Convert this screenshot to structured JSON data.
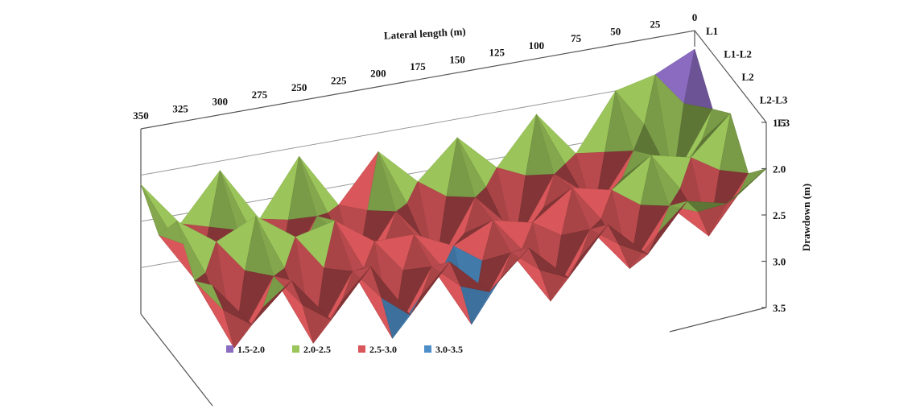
{
  "chart_data": {
    "type": "surface",
    "title": "",
    "xlabel": "Lateral length (m)",
    "ylabel": "",
    "zlabel": "Drawdown (m)",
    "x_ticks": [
      "350",
      "325",
      "300",
      "275",
      "250",
      "225",
      "200",
      "175",
      "150",
      "125",
      "100",
      "75",
      "50",
      "25",
      "0"
    ],
    "y_ticks": [
      "L1",
      "L1-L2",
      "L2",
      "L2-L3",
      "L3"
    ],
    "z_ticks": [
      "1.5",
      "2.0",
      "2.5",
      "3.0",
      "3.5"
    ],
    "zlim": [
      1.5,
      3.5
    ],
    "legend": [
      {
        "label": "1.5-2.0",
        "color": "#8a6bbf"
      },
      {
        "label": "2.0-2.5",
        "color": "#9bc55a"
      },
      {
        "label": "2.5-3.0",
        "color": "#d9575a"
      },
      {
        "label": "3.0-3.5",
        "color": "#4e8fc8"
      }
    ],
    "legend_position": "bottom-left",
    "x": [
      350,
      325,
      300,
      275,
      250,
      225,
      200,
      175,
      150,
      125,
      100,
      75,
      50,
      25,
      0
    ],
    "y": [
      "L1",
      "L1-L2",
      "L2",
      "L2-L3",
      "L3"
    ],
    "z": [
      [
        2.1,
        2.6,
        2.1,
        2.7,
        2.1,
        2.7,
        2.2,
        2.6,
        2.2,
        2.6,
        2.1,
        2.6,
        2.0,
        1.9,
        1.7
      ],
      [
        2.4,
        3.0,
        2.5,
        3.2,
        2.5,
        3.2,
        2.6,
        3.3,
        2.6,
        3.2,
        2.5,
        3.0,
        2.4,
        2.8,
        2.1
      ],
      [
        2.0,
        2.3,
        2.1,
        2.4,
        2.3,
        2.6,
        2.6,
        2.8,
        2.6,
        2.7,
        2.4,
        2.5,
        2.2,
        2.3,
        1.9
      ],
      [
        2.4,
        3.2,
        2.5,
        3.3,
        2.6,
        3.4,
        2.7,
        3.4,
        2.7,
        3.3,
        2.6,
        3.1,
        2.5,
        2.9,
        2.3
      ],
      [
        2.2,
        2.7,
        2.3,
        2.8,
        2.3,
        2.9,
        2.4,
        2.8,
        2.4,
        2.8,
        2.3,
        2.7,
        2.2,
        2.3,
        2.0
      ]
    ]
  }
}
